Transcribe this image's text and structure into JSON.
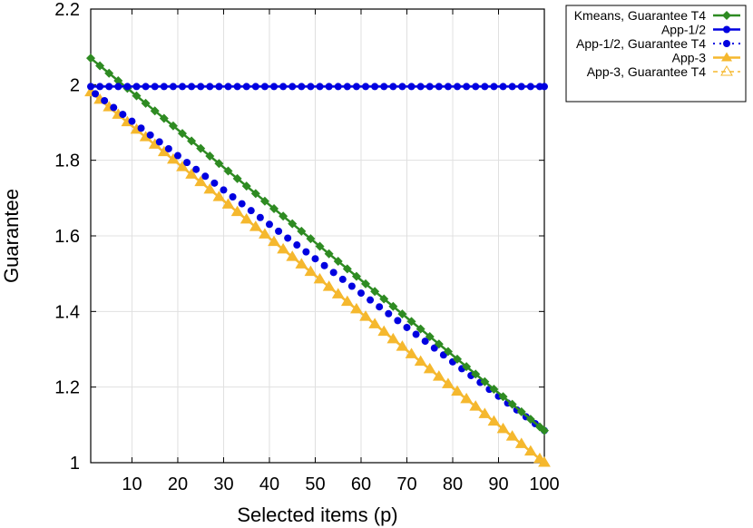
{
  "chart_data": {
    "type": "line",
    "xlabel": "Selected items (p)",
    "ylabel": "Guarantee",
    "xlim": [
      1,
      100
    ],
    "ylim": [
      1,
      2.2
    ],
    "x_ticks": [
      10,
      20,
      30,
      40,
      50,
      60,
      70,
      80,
      90,
      100
    ],
    "y_ticks": [
      "1",
      "1.2",
      "1.4",
      "1.6",
      "1.8",
      "2",
      "2.2"
    ],
    "grid": true,
    "legend_position": "outside-top-right",
    "x_step": 2,
    "series": [
      {
        "name": "Kmeans, Guarantee T4",
        "color": "#2e8b22",
        "marker": "diamond",
        "style": "line",
        "x_start": 1,
        "y_start": 2.07,
        "y_end": 1.085
      },
      {
        "name": "App-1/2",
        "color": "#0000e0",
        "marker": "circle",
        "style": "line",
        "x_start": 1,
        "y_start": 1.995,
        "y_end": 1.995
      },
      {
        "name": "App-1/2, Guarantee T4",
        "color": "#0000e0",
        "marker": "circle",
        "style": "dotted",
        "x_start": 2,
        "y_start": 1.985,
        "y_end": 1.085
      },
      {
        "name": "App-3",
        "color": "#f5b82e",
        "marker": "triangle",
        "style": "line",
        "x_start": 1,
        "y_start": 1.98,
        "y_end": 1.0
      },
      {
        "name": "App-3, Guarantee T4",
        "color": "#f5b82e",
        "marker": "triangle-open",
        "style": "dashed",
        "x_start": 1,
        "y_start": 1.98,
        "y_end": 1.0
      }
    ]
  }
}
